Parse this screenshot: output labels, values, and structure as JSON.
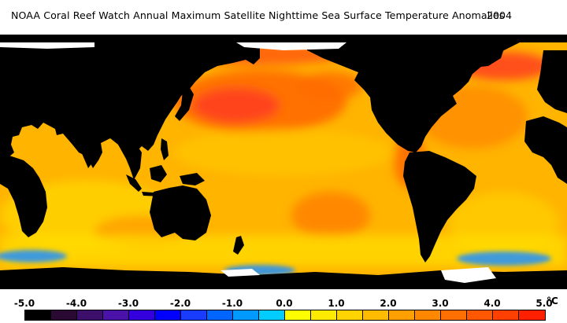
{
  "header": {
    "title": "NOAA Coral Reef Watch Annual Maximum Satellite Nighttime Sea Surface Temperature Anomalies",
    "year": "2004"
  },
  "legend": {
    "tick_labels": [
      "-5.0",
      "-4.0",
      "-3.0",
      "-2.0",
      "-1.0",
      "0.0",
      "1.0",
      "2.0",
      "3.0",
      "4.0",
      "5.0"
    ],
    "unit": "°C",
    "colors": [
      "#000000",
      "#2a0a32",
      "#3c0f6a",
      "#4a12a8",
      "#3300dd",
      "#0000ff",
      "#1a3cff",
      "#0066ff",
      "#0099ff",
      "#00ccff",
      "#ffff00",
      "#ffea00",
      "#ffd400",
      "#ffbb00",
      "#ffa000",
      "#ff8800",
      "#ff7000",
      "#ff5800",
      "#ff4000",
      "#ff2000"
    ]
  },
  "map_colors": {
    "land": "#000000",
    "ice": "#ffffff",
    "ocean_base": "#ffb400",
    "warm": "#ff6a00",
    "hot": "#ff3c1e",
    "cool": "#ffe000",
    "cold": "#1e90ff"
  }
}
